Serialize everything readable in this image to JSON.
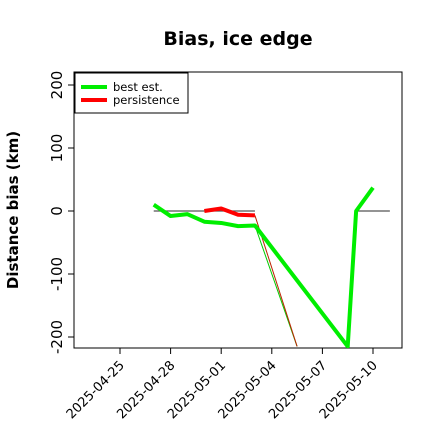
{
  "chart_data": {
    "type": "line",
    "title": "Bias, ice edge",
    "xlabel": "",
    "ylabel": "Distance bias (km)",
    "xlim": [
      "2025-04-22",
      "2025-05-11"
    ],
    "ylim": [
      -215,
      215
    ],
    "yticks": [
      -200,
      -100,
      0,
      100,
      200
    ],
    "xticks": [
      "2025-04-25",
      "2025-04-28",
      "2025-05-01",
      "2025-05-04",
      "2025-05-07",
      "2025-05-10"
    ],
    "grid": false,
    "legend_position": "top-left",
    "series": [
      {
        "name": "best est.",
        "color": "#00ee00",
        "width": "thick",
        "points": [
          [
            "2025-04-27",
            10
          ],
          [
            "2025-04-28",
            -8
          ],
          [
            "2025-04-29",
            -5
          ],
          [
            "2025-04-30",
            -17
          ],
          [
            "2025-05-01",
            -19
          ],
          [
            "2025-05-02",
            -24
          ],
          [
            "2025-05-03",
            -23
          ],
          [
            "2025-05-08T12",
            -215
          ],
          [
            "2025-05-09",
            0
          ],
          [
            "2025-05-10",
            37
          ]
        ]
      },
      {
        "name": "persistence",
        "color": "#ff0000",
        "width": "thick",
        "points": [
          [
            "2025-04-30",
            0
          ],
          [
            "2025-05-01",
            4
          ],
          [
            "2025-05-02",
            -6
          ],
          [
            "2025-05-03",
            -7
          ]
        ]
      }
    ],
    "thin_lines": [
      {
        "color": "#00cc00",
        "points": [
          [
            "2025-05-03",
            -23
          ],
          [
            "2025-05-05T12",
            -215
          ]
        ]
      },
      {
        "color": "#bb2200",
        "points": [
          [
            "2025-05-03",
            -7
          ],
          [
            "2025-05-05T12",
            -215
          ]
        ]
      }
    ],
    "reference_segments": [
      {
        "color": "#555555",
        "points": [
          [
            "2025-04-27",
            0
          ],
          [
            "2025-05-03",
            0
          ]
        ]
      },
      {
        "color": "#555555",
        "points": [
          [
            "2025-05-09",
            0
          ],
          [
            "2025-05-11",
            0
          ]
        ]
      }
    ]
  }
}
